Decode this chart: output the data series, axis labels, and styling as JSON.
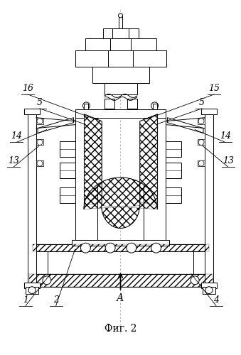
{
  "title": "Фиг. 2",
  "arrow_label": "А",
  "bg_color": "#ffffff",
  "line_color": "#000000"
}
